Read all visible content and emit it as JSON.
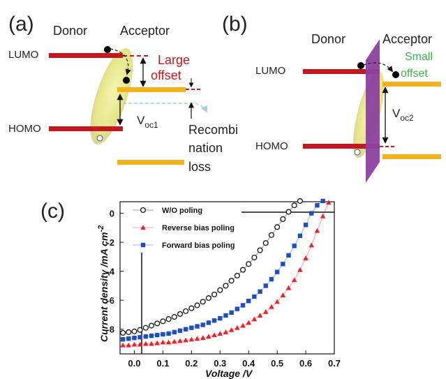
{
  "panels": {
    "a": {
      "tag": "(a)",
      "donor": "Donor",
      "acceptor": "Acceptor",
      "lumo": "LUMO",
      "homo": "HOMO",
      "offset_line1": "Large",
      "offset_line2": "offset",
      "voc_main": "V",
      "voc_sub": "oc1",
      "recomb_line1": "Recombi",
      "recomb_line2": "nation",
      "recomb_line3": "loss"
    },
    "b": {
      "tag": "(b)",
      "donor": "Donor",
      "acceptor": "Acceptor",
      "lumo": "LUMO",
      "homo": "HOMO",
      "offset_line1": "Small",
      "offset_line2": "offset",
      "voc_main": "V",
      "voc_sub": "oc2"
    },
    "c": {
      "tag": "(c)"
    }
  },
  "colors": {
    "donor_level": "#c0191f",
    "acceptor_level": "#f2b21d",
    "large_offset_text": "#c0191f",
    "small_offset_text": "#3cb04a",
    "dipole_layer": "#8e3fa0",
    "exciton": "#dfe07a",
    "series_wo": "#111111",
    "series_reverse": "#e8232a",
    "series_forward": "#1f4fbf"
  },
  "chart_data": {
    "type": "scatter",
    "xlabel": "Voltage /V",
    "ylabel_main": "Current density /mA cm",
    "ylabel_sup": "-2",
    "xlim": [
      -0.05,
      0.7
    ],
    "ylim": [
      -9.7,
      0.8
    ],
    "xticks": [
      0.0,
      0.1,
      0.2,
      0.3,
      0.4,
      0.5,
      0.6,
      0.7
    ],
    "xtick_labels": [
      "0.0",
      "0.1",
      "0.2",
      "0.3",
      "0.4",
      "0.5",
      "0.6",
      "0.7"
    ],
    "yticks": [
      0,
      -2,
      -4,
      -6,
      -8
    ],
    "ytick_labels": [
      "0",
      "-2",
      "-4",
      "-6",
      "-8"
    ],
    "grid": false,
    "legend_position": "top-left",
    "series": [
      {
        "name": "W/O poling",
        "marker": "circle",
        "color": "#111111",
        "x": [
          -0.04,
          -0.02,
          0.0,
          0.02,
          0.04,
          0.06,
          0.08,
          0.1,
          0.12,
          0.14,
          0.16,
          0.18,
          0.2,
          0.22,
          0.24,
          0.26,
          0.28,
          0.3,
          0.32,
          0.34,
          0.36,
          0.38,
          0.4,
          0.42,
          0.44,
          0.46,
          0.48,
          0.5,
          0.52,
          0.54,
          0.56,
          0.58
        ],
        "y": [
          -8.25,
          -8.2,
          -8.15,
          -8.05,
          -7.9,
          -7.75,
          -7.6,
          -7.45,
          -7.3,
          -7.15,
          -6.95,
          -6.75,
          -6.55,
          -6.35,
          -6.1,
          -5.85,
          -5.6,
          -5.3,
          -5.0,
          -4.65,
          -4.3,
          -3.9,
          -3.5,
          -3.05,
          -2.55,
          -2.05,
          -1.5,
          -0.95,
          -0.4,
          0.1,
          0.55,
          0.85
        ]
      },
      {
        "name": "Reverse bias poling",
        "marker": "triangle",
        "color": "#e8232a",
        "x": [
          -0.04,
          -0.02,
          0.0,
          0.02,
          0.04,
          0.06,
          0.08,
          0.1,
          0.12,
          0.14,
          0.16,
          0.18,
          0.2,
          0.22,
          0.24,
          0.26,
          0.28,
          0.3,
          0.32,
          0.34,
          0.36,
          0.38,
          0.4,
          0.42,
          0.44,
          0.46,
          0.48,
          0.5,
          0.52,
          0.54,
          0.56,
          0.58,
          0.6,
          0.62,
          0.64,
          0.66,
          0.68
        ],
        "y": [
          -9.1,
          -9.1,
          -9.05,
          -9.05,
          -9.0,
          -9.0,
          -8.95,
          -8.9,
          -8.9,
          -8.85,
          -8.8,
          -8.75,
          -8.7,
          -8.65,
          -8.6,
          -8.5,
          -8.4,
          -8.3,
          -8.2,
          -8.05,
          -7.9,
          -7.75,
          -7.55,
          -7.3,
          -7.05,
          -6.8,
          -6.45,
          -6.1,
          -5.65,
          -5.15,
          -4.6,
          -3.9,
          -3.1,
          -2.2,
          -1.2,
          -0.2,
          0.75
        ]
      },
      {
        "name": "Forward bias poling",
        "marker": "square",
        "color": "#1f4fbf",
        "x": [
          -0.04,
          -0.02,
          0.0,
          0.02,
          0.04,
          0.06,
          0.08,
          0.1,
          0.12,
          0.14,
          0.16,
          0.18,
          0.2,
          0.22,
          0.24,
          0.26,
          0.28,
          0.3,
          0.32,
          0.34,
          0.36,
          0.38,
          0.4,
          0.42,
          0.44,
          0.46,
          0.48,
          0.5,
          0.52,
          0.54,
          0.56,
          0.58,
          0.6,
          0.62,
          0.64,
          0.66
        ],
        "y": [
          -8.7,
          -8.65,
          -8.6,
          -8.55,
          -8.5,
          -8.45,
          -8.4,
          -8.35,
          -8.3,
          -8.2,
          -8.1,
          -8.0,
          -7.9,
          -7.8,
          -7.7,
          -7.55,
          -7.4,
          -7.25,
          -7.05,
          -6.85,
          -6.6,
          -6.35,
          -6.05,
          -5.75,
          -5.4,
          -5.0,
          -4.55,
          -4.05,
          -3.5,
          -2.9,
          -2.25,
          -1.55,
          -0.8,
          0.0,
          0.55,
          0.85
        ]
      }
    ]
  }
}
